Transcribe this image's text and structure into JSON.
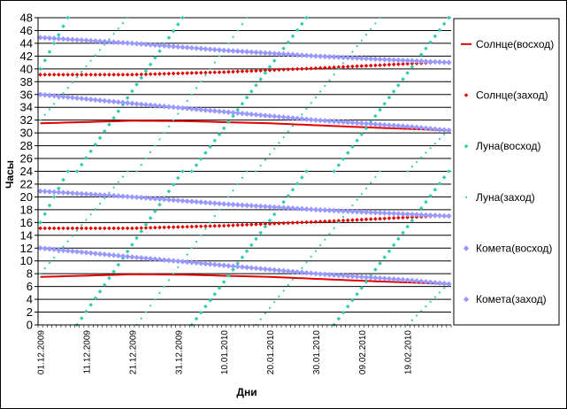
{
  "chart_data": {
    "type": "scatter",
    "title": "",
    "xlabel": "Дни",
    "ylabel": "Часы",
    "x_range": [
      "01.12.2009",
      "28.02.2010"
    ],
    "ylim": [
      0,
      48
    ],
    "y_ticks": [
      0,
      2,
      4,
      6,
      8,
      10,
      12,
      14,
      16,
      18,
      20,
      22,
      24,
      26,
      28,
      30,
      32,
      34,
      36,
      38,
      40,
      42,
      44,
      46,
      48
    ],
    "x_tick_labels": [
      "01.12.2009",
      "11.12.2009",
      "21.12.2009",
      "31.12.2009",
      "10.01.2010",
      "20.01.2010",
      "30.01.2010",
      "09.02.2010",
      "19.02.2010"
    ],
    "grid": "horizontal",
    "legend_position": "right",
    "series": [
      {
        "name": "Солнце(восход)",
        "style": "line",
        "color": "#e00000",
        "repeat_offsets": [
          0,
          24
        ],
        "points": [
          [
            "01.12.2009",
            7.5
          ],
          [
            "21.12.2009",
            7.9
          ],
          [
            "01.01.2010",
            7.85
          ],
          [
            "20.01.2010",
            7.5
          ],
          [
            "09.02.2010",
            6.9
          ],
          [
            "28.02.2010",
            6.4
          ]
        ]
      },
      {
        "name": "Солнце(заход)",
        "style": "marker",
        "marker": "diamond",
        "color": "#e00000",
        "repeat_offsets": [
          0,
          24
        ],
        "points": [
          [
            "01.12.2009",
            15.1
          ],
          [
            "21.12.2009",
            15.1
          ],
          [
            "10.01.2010",
            15.5
          ],
          [
            "30.01.2010",
            16.1
          ],
          [
            "19.02.2010",
            16.8
          ],
          [
            "28.02.2010",
            17.1
          ]
        ]
      },
      {
        "name": "Луна(восход)",
        "style": "marker",
        "marker": "diamond",
        "color": "#33ccaa",
        "daily_shift_hours": 0.83,
        "segments": [
          [
            [
              "01.12.2009",
              16.0
            ],
            [
              "07.12.2009",
              24.0
            ]
          ],
          [
            [
              "09.12.2009",
              0.0
            ],
            [
              "01.01.2010",
              24.0
            ]
          ],
          [
            [
              "03.01.2010",
              0.0
            ],
            [
              "28.01.2010",
              24.0
            ]
          ],
          [
            [
              "03.02.2010",
              0.0
            ],
            [
              "28.02.2010",
              24.0
            ]
          ]
        ],
        "repeat_offsets": [
          0,
          24
        ]
      },
      {
        "name": "Луна(заход)",
        "style": "marker",
        "marker": "dot",
        "color": "#33ccaa",
        "segments": [
          [
            [
              "01.12.2009",
              8.0
            ],
            [
              "20.12.2009",
              24.0
            ]
          ],
          [
            [
              "22.12.2009",
              0.0
            ],
            [
              "15.01.2010",
              24.0
            ]
          ],
          [
            [
              "17.01.2010",
              0.0
            ],
            [
              "13.02.2010",
              24.0
            ]
          ],
          [
            [
              "19.02.2010",
              0.0
            ],
            [
              "28.02.2010",
              6.5
            ]
          ]
        ],
        "repeat_offsets": [
          0,
          24
        ]
      },
      {
        "name": "Комета(восход)",
        "style": "marker",
        "marker": "diamond",
        "color": "#9999ff",
        "repeat_offsets": [
          0,
          24
        ],
        "points": [
          [
            "01.12.2009",
            12.0
          ],
          [
            "21.12.2009",
            10.6
          ],
          [
            "10.01.2010",
            9.3
          ],
          [
            "30.01.2010",
            8.0
          ],
          [
            "19.02.2010",
            7.0
          ],
          [
            "28.02.2010",
            6.4
          ]
        ]
      },
      {
        "name": "Комета(заход)",
        "style": "marker",
        "marker": "diamond",
        "color": "#9999ff",
        "repeat_offsets": [
          0,
          24
        ],
        "points": [
          [
            "01.12.2009",
            20.9
          ],
          [
            "21.12.2009",
            20.0
          ],
          [
            "10.01.2010",
            18.9
          ],
          [
            "30.01.2010",
            18.0
          ],
          [
            "19.02.2010",
            17.3
          ],
          [
            "28.02.2010",
            17.0
          ]
        ]
      }
    ]
  }
}
